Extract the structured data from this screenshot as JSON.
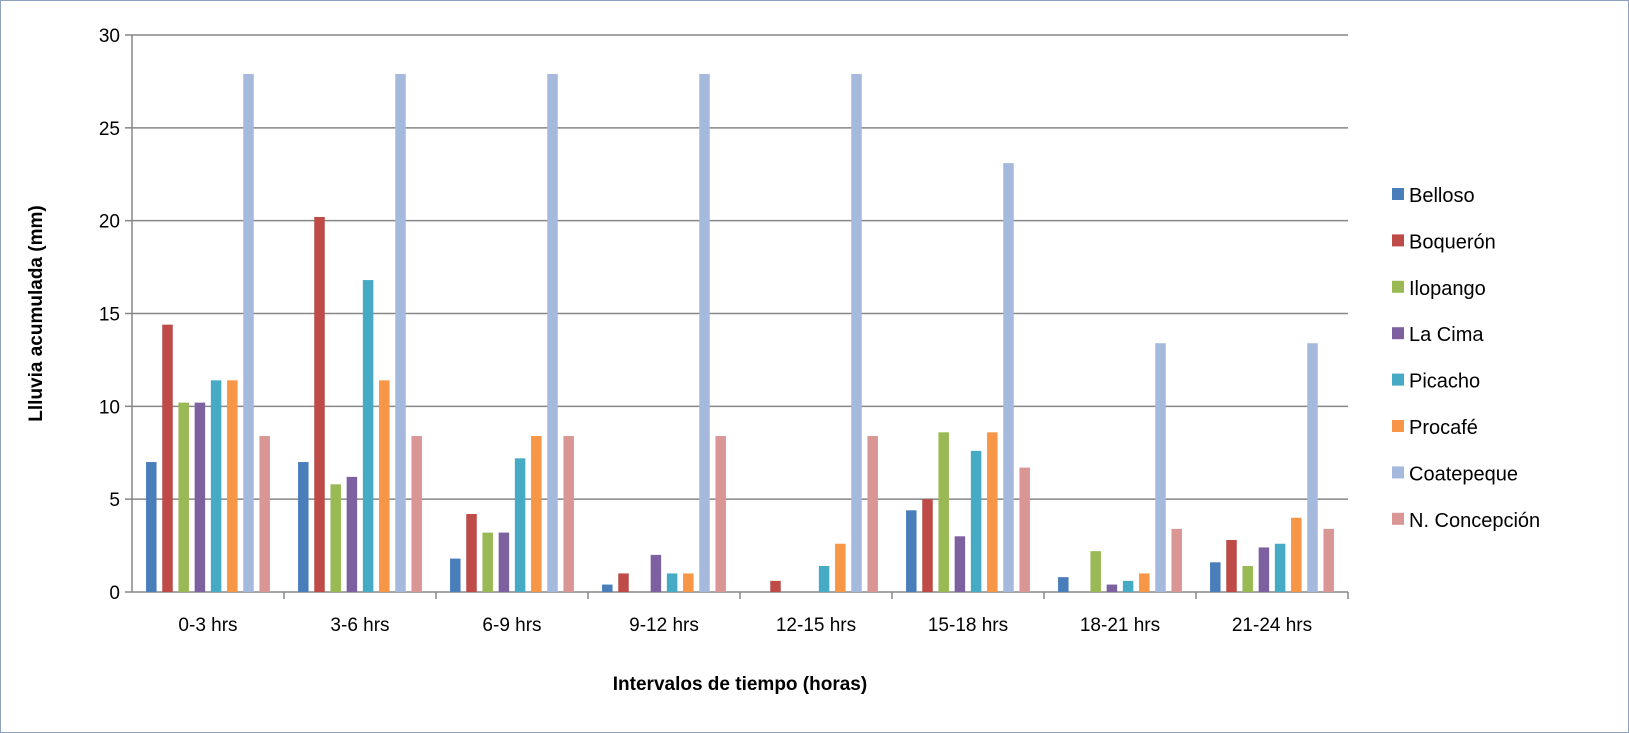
{
  "chart_data": {
    "type": "bar",
    "title": "",
    "xlabel": "Intervalos de  tiempo (horas)",
    "ylabel": "Llluvia  acumulada (mm)",
    "ylim": [
      0,
      30
    ],
    "yticks": [
      "0",
      "5",
      "10",
      "15",
      "20",
      "25",
      "30"
    ],
    "grid": true,
    "legend_position": "right",
    "categories": [
      "0-3 hrs",
      "3-6 hrs",
      "6-9 hrs",
      "9-12 hrs",
      "12-15 hrs",
      "15-18 hrs",
      "18-21 hrs",
      "21-24 hrs"
    ],
    "series": [
      {
        "name": "Belloso",
        "color": "#4a7ebb",
        "values": [
          7.0,
          7.0,
          1.8,
          0.4,
          0,
          4.4,
          0.8,
          1.6
        ]
      },
      {
        "name": "Boquerón",
        "color": "#be4b48",
        "values": [
          14.4,
          20.2,
          4.2,
          1.0,
          0.6,
          5.0,
          0,
          2.8
        ]
      },
      {
        "name": "Ilopango",
        "color": "#98b954",
        "values": [
          10.2,
          5.8,
          3.2,
          0,
          0,
          8.6,
          2.2,
          1.4
        ]
      },
      {
        "name": "La Cima",
        "color": "#7d60a0",
        "values": [
          10.2,
          6.2,
          3.2,
          2.0,
          0,
          3.0,
          0.4,
          2.4
        ]
      },
      {
        "name": "Picacho",
        "color": "#46aac5",
        "values": [
          11.4,
          16.8,
          7.2,
          1.0,
          1.4,
          7.6,
          0.6,
          2.6
        ]
      },
      {
        "name": "Procafé",
        "color": "#f79646",
        "values": [
          11.4,
          11.4,
          8.4,
          1.0,
          2.6,
          8.6,
          1.0,
          4.0
        ]
      },
      {
        "name": "Coatepeque",
        "color": "#a5b9dd",
        "values": [
          27.9,
          27.9,
          27.9,
          27.9,
          27.9,
          23.1,
          13.4,
          13.4
        ]
      },
      {
        "name": "N. Concepción",
        "color": "#d99694",
        "values": [
          8.4,
          8.4,
          8.4,
          8.4,
          8.4,
          6.7,
          3.4,
          3.4
        ]
      }
    ]
  }
}
